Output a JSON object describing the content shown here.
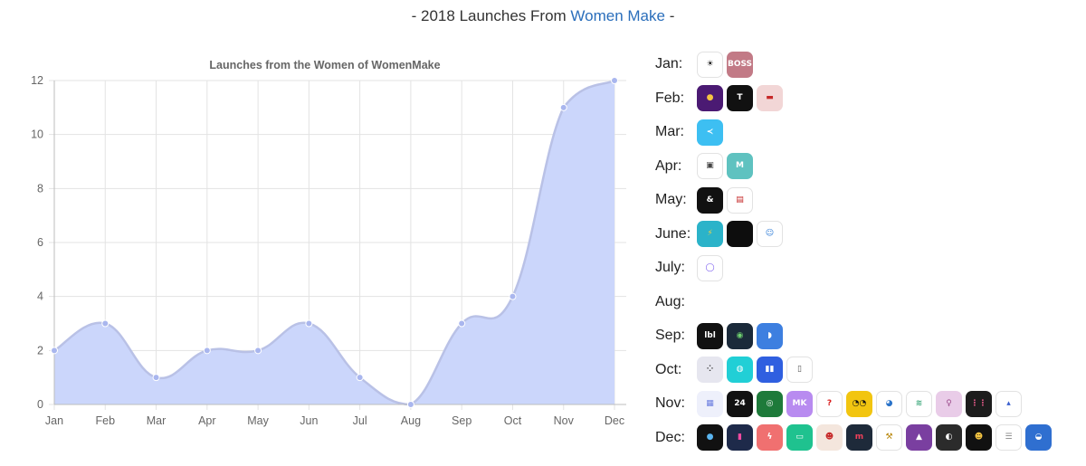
{
  "header": {
    "prefix": "- 2018 Launches From ",
    "link": "Women Make",
    "suffix": " -"
  },
  "chart_data": {
    "type": "area",
    "title": "Launches from the Women of WomenMake",
    "categories": [
      "Jan",
      "Feb",
      "Mar",
      "Apr",
      "May",
      "Jun",
      "Jul",
      "Aug",
      "Sep",
      "Oct",
      "Nov",
      "Dec"
    ],
    "values": [
      2,
      3,
      1,
      2,
      2,
      3,
      1,
      0,
      3,
      4,
      11,
      12
    ],
    "ylim": [
      0,
      12
    ],
    "yticks": [
      0,
      2,
      4,
      6,
      8,
      10,
      12
    ],
    "grid": true,
    "fill_color": "#cbd6fb",
    "line_color": "#b9c1e6",
    "point_color": "#a9b6ee"
  },
  "launches": [
    {
      "label": "Jan:",
      "icons": [
        {
          "name": "sunrise-app-icon",
          "bg": "#ffffff",
          "fg": "#111111",
          "glyph": "☀"
        },
        {
          "name": "boss-app-icon",
          "bg": "#c27a86",
          "fg": "#ffffff",
          "glyph": "BOSS"
        }
      ]
    },
    {
      "label": "Feb:",
      "icons": [
        {
          "name": "purple-app-icon",
          "bg": "#4b1a73",
          "fg": "#f5c542",
          "glyph": "●"
        },
        {
          "name": "t-app-icon",
          "bg": "#111111",
          "fg": "#ffffff",
          "glyph": "T"
        },
        {
          "name": "ticket-app-icon",
          "bg": "#f2d6d6",
          "fg": "#c62828",
          "glyph": "▬"
        }
      ]
    },
    {
      "label": "Mar:",
      "icons": [
        {
          "name": "blue-app-icon",
          "bg": "#3dbff2",
          "fg": "#ffffff",
          "glyph": "≺"
        }
      ]
    },
    {
      "label": "Apr:",
      "icons": [
        {
          "name": "tv-app-icon",
          "bg": "#ffffff",
          "fg": "#444444",
          "glyph": "▣"
        },
        {
          "name": "m-app-icon",
          "bg": "#5fc2c0",
          "fg": "#ffffff",
          "glyph": "M"
        }
      ]
    },
    {
      "label": "May:",
      "icons": [
        {
          "name": "ampersand-app-icon",
          "bg": "#111111",
          "fg": "#ffffff",
          "glyph": "&"
        },
        {
          "name": "document-app-icon",
          "bg": "#ffffff",
          "fg": "#c62828",
          "glyph": "▤"
        }
      ]
    },
    {
      "label": "June:",
      "icons": [
        {
          "name": "bolt-app-icon",
          "bg": "#2bb3c9",
          "fg": "#f5d442",
          "glyph": "⚡"
        },
        {
          "name": "black-app-icon",
          "bg": "#0d0d0d",
          "fg": "#0d0d0d",
          "glyph": ""
        },
        {
          "name": "person-app-icon",
          "bg": "#ffffff",
          "fg": "#2c7ad6",
          "glyph": "☺"
        }
      ]
    },
    {
      "label": "July:",
      "icons": [
        {
          "name": "ring-app-icon",
          "bg": "#ffffff",
          "fg": "#7a5cf0",
          "glyph": "◯"
        }
      ]
    },
    {
      "label": "Aug:",
      "icons": []
    },
    {
      "label": "Sep:",
      "icons": [
        {
          "name": "label-app-icon",
          "bg": "#111111",
          "fg": "#ffffff",
          "glyph": "lbl"
        },
        {
          "name": "globe-app-icon",
          "bg": "#1b2a3a",
          "fg": "#6fd16f",
          "glyph": "◉"
        },
        {
          "name": "shoe-app-icon",
          "bg": "#3d7fe0",
          "fg": "#ffffff",
          "glyph": "◗"
        }
      ]
    },
    {
      "label": "Oct:",
      "icons": [
        {
          "name": "dots-app-icon",
          "bg": "#e6e6ef",
          "fg": "#333333",
          "glyph": "⁘"
        },
        {
          "name": "teal-app-icon",
          "bg": "#21cfd6",
          "fg": "#ffffff",
          "glyph": "◍"
        },
        {
          "name": "bars-app-icon",
          "bg": "#2f5fe0",
          "fg": "#ffffff",
          "glyph": "▮▮"
        },
        {
          "name": "lock-app-icon",
          "bg": "#ffffff",
          "fg": "#555555",
          "glyph": "▯"
        }
      ]
    },
    {
      "label": "Nov:",
      "icons": [
        {
          "name": "grid-app-icon",
          "bg": "#eef0fb",
          "fg": "#6b7de0",
          "glyph": "▦"
        },
        {
          "name": "24hr-app-icon",
          "bg": "#111111",
          "fg": "#ffffff",
          "glyph": "24"
        },
        {
          "name": "magnifier-app-icon",
          "bg": "#1e7a3a",
          "fg": "#ffffff",
          "glyph": "◎"
        },
        {
          "name": "make-app-icon",
          "bg": "#b88bf0",
          "fg": "#ffffff",
          "glyph": "MK"
        },
        {
          "name": "question-app-icon",
          "bg": "#ffffff",
          "fg": "#d81b1b",
          "glyph": "?"
        },
        {
          "name": "eyes-app-icon",
          "bg": "#f2c510",
          "fg": "#111111",
          "glyph": "◔◔"
        },
        {
          "name": "earth-app-icon",
          "bg": "#ffffff",
          "fg": "#2a73c9",
          "glyph": "◕"
        },
        {
          "name": "coins-app-icon",
          "bg": "#ffffff",
          "fg": "#3aa77a",
          "glyph": "≋"
        },
        {
          "name": "yoga-app-icon",
          "bg": "#e9cce8",
          "fg": "#a0508f",
          "glyph": "♀"
        },
        {
          "name": "audio-app-icon",
          "bg": "#1c1c1c",
          "fg": "#e85a8a",
          "glyph": "⋮⋮"
        },
        {
          "name": "mini-chart-app-icon",
          "bg": "#ffffff",
          "fg": "#3a5fcf",
          "glyph": "▴"
        }
      ]
    },
    {
      "label": "Dec:",
      "icons": [
        {
          "name": "blob-app-icon",
          "bg": "#111111",
          "fg": "#5ab5f0",
          "glyph": "●"
        },
        {
          "name": "phone-app-icon",
          "bg": "#1e2a4a",
          "fg": "#f04aa0",
          "glyph": "▮"
        },
        {
          "name": "flash-app-icon",
          "bg": "#f07070",
          "fg": "#ffffff",
          "glyph": "ϟ"
        },
        {
          "name": "folder-app-icon",
          "bg": "#1fc28f",
          "fg": "#ffffff",
          "glyph": "▭"
        },
        {
          "name": "santa-app-icon",
          "bg": "#f4e6dd",
          "fg": "#c62828",
          "glyph": "☻"
        },
        {
          "name": "m-red-app-icon",
          "bg": "#1e2a3a",
          "fg": "#f0405a",
          "glyph": "m"
        },
        {
          "name": "hammer-app-icon",
          "bg": "#ffffff",
          "fg": "#b8860b",
          "glyph": "⚒"
        },
        {
          "name": "witch-app-icon",
          "bg": "#7a3fa0",
          "fg": "#ffffff",
          "glyph": "▲"
        },
        {
          "name": "moon-app-icon",
          "bg": "#2b2b2b",
          "fg": "#ffffff",
          "glyph": "◐"
        },
        {
          "name": "emoji-app-icon",
          "bg": "#111111",
          "fg": "#f5c542",
          "glyph": "☻"
        },
        {
          "name": "list-app-icon",
          "bg": "#ffffff",
          "fg": "#888888",
          "glyph": "☰"
        },
        {
          "name": "ghost-app-icon",
          "bg": "#2f6fd0",
          "fg": "#ffffff",
          "glyph": "◒"
        }
      ]
    }
  ]
}
